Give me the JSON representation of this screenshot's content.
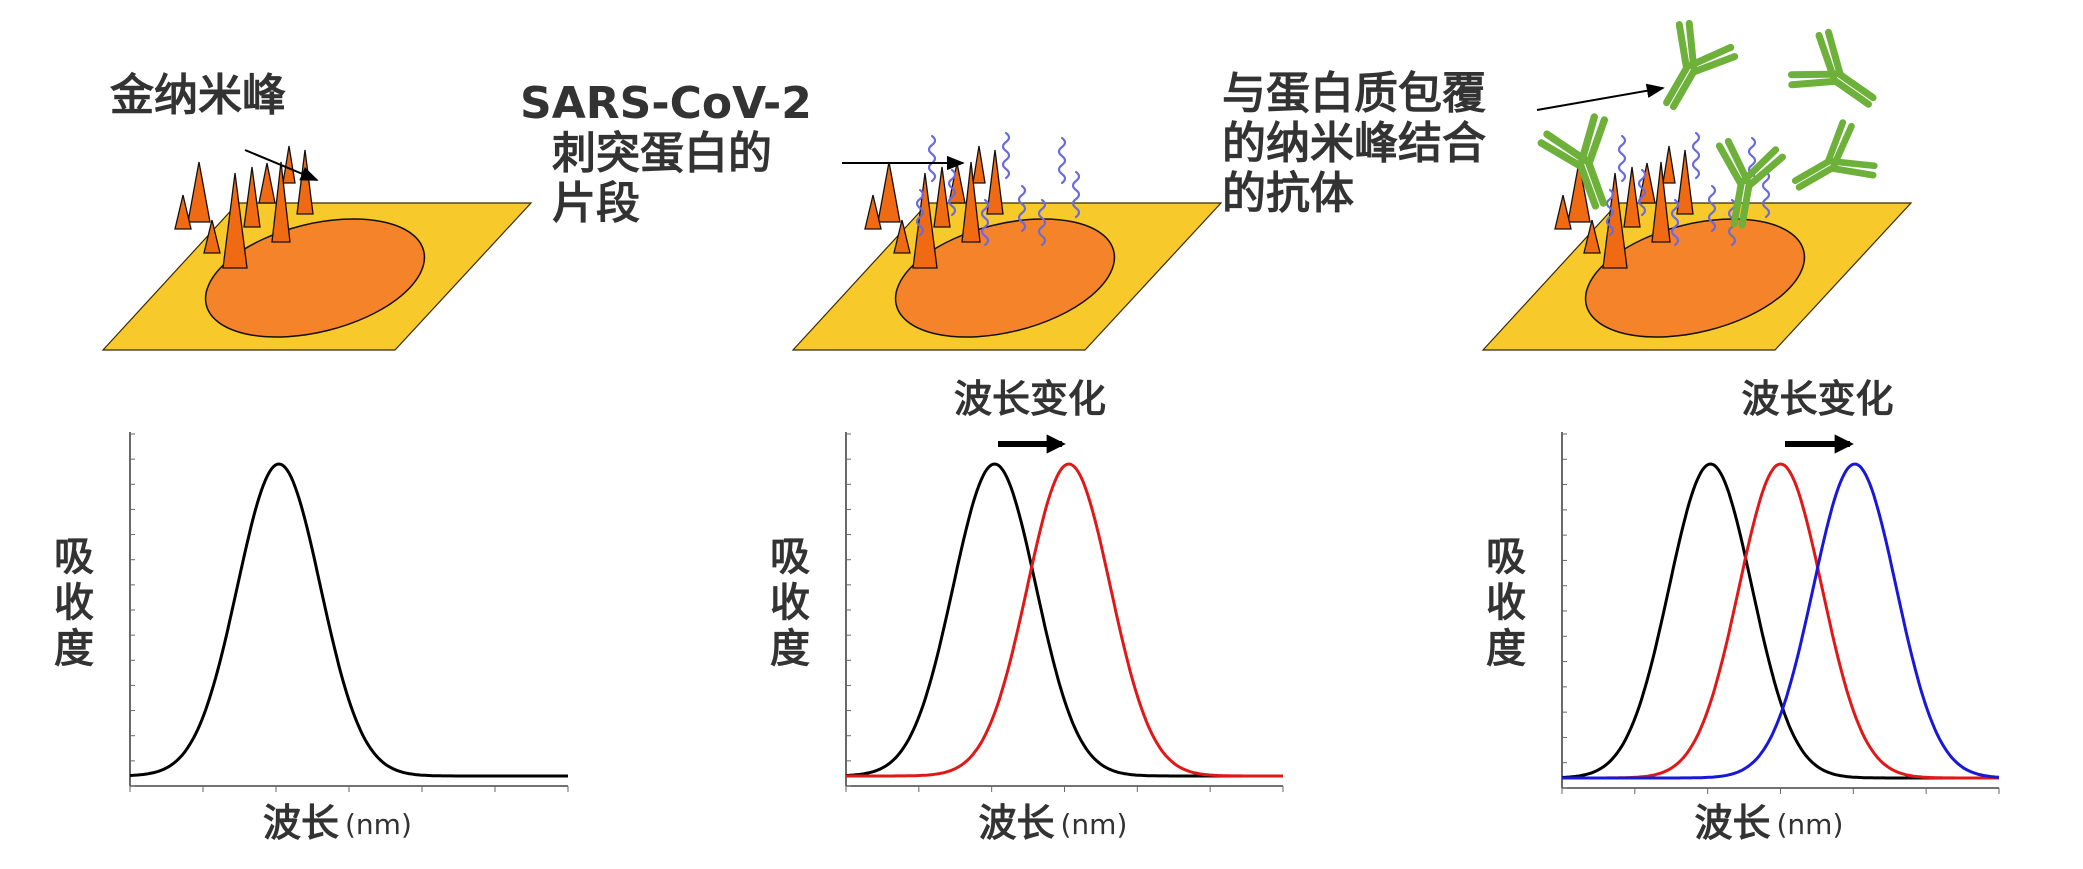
{
  "colors": {
    "gold_plate": "#f8c92a",
    "gold_ellipse": "#f5832a",
    "spike_fill": "#f06a14",
    "protein_wave": "#6a6ae0",
    "antibody": "#6db03a",
    "curve_baseline": "#000000",
    "curve_protein": "#e01818",
    "curve_antibody": "#1818d8"
  },
  "panels": [
    {
      "annotations": [
        {
          "lines": [
            "金纳米峰"
          ]
        }
      ],
      "shift_label": "",
      "xlabel": {
        "main": "波长",
        "unit": "(nm)"
      },
      "ylabel": [
        "吸",
        "收",
        "度"
      ]
    },
    {
      "annotations": [
        {
          "lines": [
            "SARS-CoV-2",
            "刺突蛋白的",
            "片段"
          ]
        }
      ],
      "shift_label": "波长变化",
      "xlabel": {
        "main": "波长",
        "unit": "(nm)"
      },
      "ylabel": [
        "吸",
        "收",
        "度"
      ]
    },
    {
      "annotations": [
        {
          "lines": [
            "与蛋白质包覆",
            "的纳米峰结合",
            "的抗体"
          ]
        }
      ],
      "shift_label": "波长变化",
      "xlabel": {
        "main": "波长",
        "unit": "(nm)"
      },
      "ylabel": [
        "吸",
        "收",
        "度"
      ]
    }
  ],
  "chart_data": [
    {
      "type": "line",
      "series": [
        {
          "color": "#000000",
          "peak_position": 0.34
        }
      ]
    },
    {
      "type": "line",
      "series": [
        {
          "color": "#000000",
          "peak_position": 0.34
        },
        {
          "color": "#e01818",
          "peak_position": 0.51
        }
      ]
    },
    {
      "type": "line",
      "series": [
        {
          "color": "#000000",
          "peak_position": 0.34
        },
        {
          "color": "#e01818",
          "peak_position": 0.5
        },
        {
          "color": "#1818d8",
          "peak_position": 0.67
        }
      ]
    }
  ]
}
